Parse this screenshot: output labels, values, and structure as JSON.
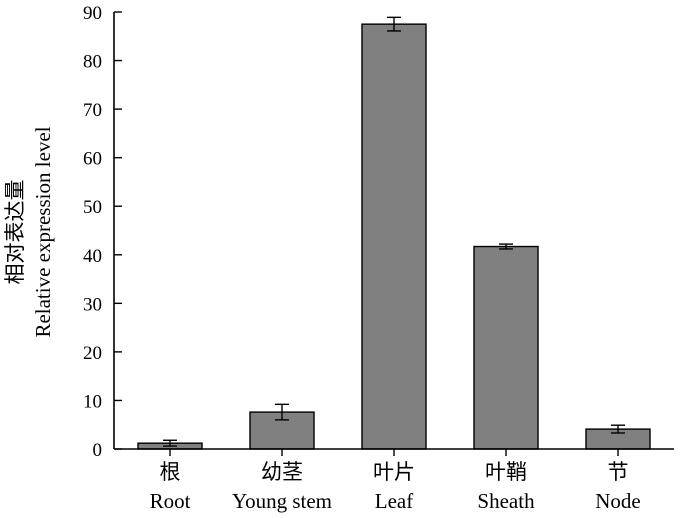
{
  "chart_data": {
    "type": "bar",
    "categories": [
      {
        "zh": "根",
        "en": "Root"
      },
      {
        "zh": "幼茎",
        "en": "Young stem"
      },
      {
        "zh": "叶片",
        "en": "Leaf"
      },
      {
        "zh": "叶鞘",
        "en": "Sheath"
      },
      {
        "zh": "节",
        "en": "Node"
      }
    ],
    "values": [
      1.2,
      7.6,
      87.5,
      41.7,
      4.1
    ],
    "errors": [
      0.6,
      1.6,
      1.4,
      0.5,
      0.8
    ],
    "ylabel_zh": "相对表达量",
    "ylabel_en": "Relative expression level",
    "ylim": [
      0,
      90
    ],
    "yticks": [
      0,
      10,
      20,
      30,
      40,
      50,
      60,
      70,
      80,
      90
    ],
    "bar_color": "#808080",
    "grid": false
  }
}
